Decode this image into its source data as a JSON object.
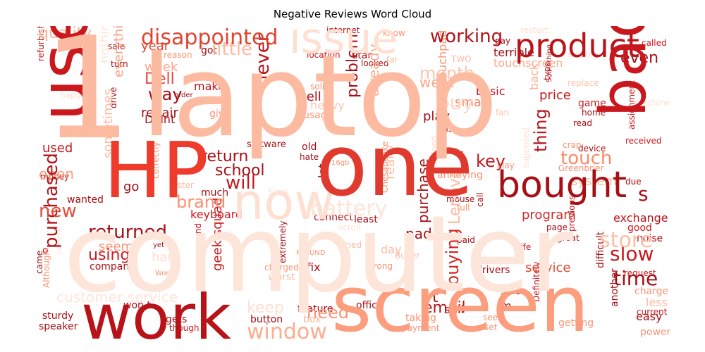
{
  "title": "Negative Reviews Word Cloud",
  "chart_data": {
    "type": "wordcloud",
    "title": "Negative Reviews Word Cloud",
    "colormap": "Reds",
    "background": "#ffffff",
    "words": [
      {
        "text": "laptop",
        "color": "#fcbba1"
      },
      {
        "text": "computer",
        "color": "#fee5d9"
      },
      {
        "text": "one",
        "color": "#e03a2f"
      },
      {
        "text": "screen",
        "color": "#fc9e7e"
      },
      {
        "text": "HP",
        "color": "#ef3b2c"
      },
      {
        "text": "use",
        "color": "#cb181d"
      },
      {
        "text": "bad",
        "color": "#c8171d"
      },
      {
        "text": "work",
        "color": "#b71319"
      },
      {
        "text": "1",
        "color": "#fcbba1"
      },
      {
        "text": "bought",
        "color": "#a50f15"
      },
      {
        "text": "now",
        "color": "#fee0d2"
      },
      {
        "text": "issue",
        "color": "#fee0d2"
      },
      {
        "text": "product",
        "color": "#b91419"
      },
      {
        "text": "disappointed",
        "color": "#e0442f"
      },
      {
        "text": "working",
        "color": "#b21218"
      },
      {
        "text": "window",
        "color": "#fcac91"
      },
      {
        "text": "time",
        "color": "#a50f15"
      },
      {
        "text": "slow",
        "color": "#c8171c"
      },
      {
        "text": "store",
        "color": "#fcbfa5"
      },
      {
        "text": "return",
        "color": "#a81016"
      },
      {
        "text": "purchased",
        "color": "#b31217"
      },
      {
        "text": "returned",
        "color": "#a50f15"
      },
      {
        "text": "will",
        "color": "#c31a1f"
      },
      {
        "text": "school",
        "color": "#a50f15"
      },
      {
        "text": "key",
        "color": "#c31a1f"
      },
      {
        "text": "touch",
        "color": "#fc8a6a"
      },
      {
        "text": "thing",
        "color": "#b71319"
      },
      {
        "text": "buying",
        "color": "#ce2825"
      },
      {
        "text": "brand",
        "color": "#fc8f71"
      },
      {
        "text": "battery",
        "color": "#fee5d9"
      },
      {
        "text": "new",
        "color": "#e34b36"
      },
      {
        "text": "quality",
        "color": "#fcb59a"
      },
      {
        "text": "little",
        "color": "#fcbba1"
      },
      {
        "text": "month",
        "color": "#fdc5ad"
      },
      {
        "text": "even",
        "color": "#a50f15"
      },
      {
        "text": "Dell",
        "color": "#e8473a"
      },
      {
        "text": "week",
        "color": "#fca486"
      },
      {
        "text": "way",
        "color": "#a50f15"
      },
      {
        "text": "year",
        "color": "#e0442f"
      },
      {
        "text": "never",
        "color": "#b81419"
      },
      {
        "text": "went",
        "color": "#fca486"
      },
      {
        "text": "buy",
        "color": "#fdd7c6"
      },
      {
        "text": "problem",
        "color": "#a50f15"
      },
      {
        "text": "already",
        "color": "#fcab8f"
      },
      {
        "text": "keep",
        "color": "#fee0d2"
      },
      {
        "text": "need",
        "color": "#fc9373"
      },
      {
        "text": "email",
        "color": "#b71319"
      },
      {
        "text": "using",
        "color": "#cb181d"
      },
      {
        "text": "service",
        "color": "#e0442f"
      },
      {
        "text": "customer service",
        "color": "#fee5d9"
      },
      {
        "text": "geek squad",
        "color": "#cb181d"
      },
      {
        "text": "keyboard",
        "color": "#cb181d"
      },
      {
        "text": "program",
        "color": "#cf2a27"
      },
      {
        "text": "purchase",
        "color": "#a50f15"
      },
      {
        "text": "exchange",
        "color": "#b61419"
      },
      {
        "text": "used",
        "color": "#cb181d"
      },
      {
        "text": "open",
        "color": "#fc9979"
      },
      {
        "text": "repair",
        "color": "#a50f15"
      },
      {
        "text": "play",
        "color": "#a50f15"
      },
      {
        "text": "small",
        "color": "#fc8565"
      },
      {
        "text": "price",
        "color": "#cb181d"
      },
      {
        "text": "basic",
        "color": "#c31a1f"
      },
      {
        "text": "back",
        "color": "#fcae92"
      },
      {
        "text": "well",
        "color": "#a81016"
      },
      {
        "text": "lot",
        "color": "#a50f15"
      },
      {
        "text": "pad",
        "color": "#a50f15"
      },
      {
        "text": "still",
        "color": "#a50f15"
      },
      {
        "text": "fix",
        "color": "#b21218"
      },
      {
        "text": "seem",
        "color": "#fc9373"
      },
      {
        "text": "hard",
        "color": "#fee0d2"
      },
      {
        "text": "go",
        "color": "#a50f15"
      },
      {
        "text": "much",
        "color": "#a50f15"
      },
      {
        "text": "sometimes",
        "color": "#fcbba1"
      },
      {
        "text": "everything",
        "color": "#fc9e80"
      },
      {
        "text": "nothing",
        "color": "#fee5d9"
      },
      {
        "text": "make",
        "color": "#b91419"
      },
      {
        "text": "got",
        "color": "#a50f15"
      },
      {
        "text": "give",
        "color": "#fc9272"
      },
      {
        "text": "Didnt",
        "color": "#a50f15"
      },
      {
        "text": "software",
        "color": "#a50f15"
      },
      {
        "text": "old",
        "color": "#a50f15"
      },
      {
        "text": "hate",
        "color": "#a50f15"
      },
      {
        "text": "Sims",
        "color": "#fee0d2"
      },
      {
        "text": "heavy",
        "color": "#fdc5ad"
      },
      {
        "text": "usage",
        "color": "#fc9272"
      },
      {
        "text": "solid",
        "color": "#fc9272"
      },
      {
        "text": "touchpad",
        "color": "#fc9272"
      },
      {
        "text": "touchscreen",
        "color": "#fcad90"
      },
      {
        "text": "terrible",
        "color": "#a50f15"
      },
      {
        "text": "location",
        "color": "#cb181d"
      },
      {
        "text": "star",
        "color": "#b11218"
      },
      {
        "text": "internet",
        "color": "#b71319"
      },
      {
        "text": "know",
        "color": "#fc9272"
      },
      {
        "text": "looked",
        "color": "#a50f15"
      },
      {
        "text": "far",
        "color": "#fcbba1"
      },
      {
        "text": "pay",
        "color": "#a50f15"
      },
      {
        "text": "restart",
        "color": "#fee0d2"
      },
      {
        "text": "called",
        "color": "#cb181d"
      },
      {
        "text": "waiting",
        "color": "#fee0d2"
      },
      {
        "text": "sale",
        "color": "#a50f15"
      },
      {
        "text": "reason",
        "color": "#fc9272"
      },
      {
        "text": "turn",
        "color": "#a50f15"
      },
      {
        "text": "refurbished",
        "color": "#cb181d"
      },
      {
        "text": "happy",
        "color": "#fee0d2"
      },
      {
        "text": "mouse instead",
        "color": "#fc9272"
      },
      {
        "text": "order",
        "color": "#a50f15"
      },
      {
        "text": "drive",
        "color": "#a50f15"
      },
      {
        "text": "last",
        "color": "#a50f15"
      },
      {
        "text": "fan",
        "color": "#fdc5ad"
      },
      {
        "text": "game",
        "color": "#cb181d"
      },
      {
        "text": "home",
        "color": "#a50f15"
      },
      {
        "text": "read",
        "color": "#a50f15"
      },
      {
        "text": "replace",
        "color": "#fdc5ad"
      },
      {
        "text": "Something",
        "color": "#a50f15"
      },
      {
        "text": "type",
        "color": "#cb181d"
      },
      {
        "text": "machine",
        "color": "#fee0d2"
      },
      {
        "text": "assignment",
        "color": "#cb181d"
      },
      {
        "text": "received",
        "color": "#cb181d"
      },
      {
        "text": "device",
        "color": "#a50f15"
      },
      {
        "text": "crap",
        "color": "#fc9272"
      },
      {
        "text": "May",
        "color": "#fc9272"
      },
      {
        "text": "supposed",
        "color": "#fee0d2"
      },
      {
        "text": "helped",
        "color": "#fee0d2"
      },
      {
        "text": "Greenbrier",
        "color": "#fc9272"
      },
      {
        "text": "due",
        "color": "#a50f15"
      },
      {
        "text": "s",
        "color": "#a50f15"
      },
      {
        "text": "good",
        "color": "#cb181d"
      },
      {
        "text": "noise",
        "color": "#a50f15"
      },
      {
        "text": "great",
        "color": "#a50f15"
      },
      {
        "text": "page",
        "color": "#a50f15"
      },
      {
        "text": "previous",
        "color": "#cb181d"
      },
      {
        "text": "life",
        "color": "#cb181d"
      },
      {
        "text": "paid",
        "color": "#a50f15"
      },
      {
        "text": "request",
        "color": "#cb181d"
      },
      {
        "text": "difficult",
        "color": "#a50f15"
      },
      {
        "text": "charge",
        "color": "#fc9272"
      },
      {
        "text": "less",
        "color": "#fcbba1"
      },
      {
        "text": "current",
        "color": "#cb181d"
      },
      {
        "text": "easy",
        "color": "#a50f15"
      },
      {
        "text": "another",
        "color": "#a50f15"
      },
      {
        "text": "power",
        "color": "#fc9272"
      },
      {
        "text": "getting",
        "color": "#fc9272"
      },
      {
        "text": "Definitely",
        "color": "#cb181d"
      },
      {
        "text": "side",
        "color": "#a50f15"
      },
      {
        "text": "drivers",
        "color": "#a50f15"
      },
      {
        "text": "m",
        "color": "#a50f15"
      },
      {
        "text": "office",
        "color": "#a50f15"
      },
      {
        "text": "taking",
        "color": "#fc9272"
      },
      {
        "text": "payment",
        "color": "#fc9272"
      },
      {
        "text": "reset",
        "color": "#fc9272"
      },
      {
        "text": "see",
        "color": "#fc9272"
      },
      {
        "text": "feature",
        "color": "#a50f15"
      },
      {
        "text": "box",
        "color": "#fcbba1"
      },
      {
        "text": "wrong",
        "color": "#fc9272"
      },
      {
        "text": "tried",
        "color": "#fcbba1"
      },
      {
        "text": "REFUND",
        "color": "#fc9272"
      },
      {
        "text": "extremely",
        "color": "#a50f15"
      },
      {
        "text": "worst",
        "color": "#fcbba1"
      },
      {
        "text": "charged",
        "color": "#fc9272"
      },
      {
        "text": "button",
        "color": "#a50f15"
      },
      {
        "text": "gets",
        "color": "#a50f15"
      },
      {
        "text": "though",
        "color": "#cb181d"
      },
      {
        "text": "recommend",
        "color": "#cb181d"
      },
      {
        "text": "won t",
        "color": "#a50f15"
      },
      {
        "text": "Word",
        "color": "#fc9272"
      },
      {
        "text": "yet",
        "color": "#a50f15"
      },
      {
        "text": "company",
        "color": "#a50f15"
      },
      {
        "text": "came",
        "color": "#a50f15"
      },
      {
        "text": "Although",
        "color": "#fc9272"
      },
      {
        "text": "sturdy",
        "color": "#a50f15"
      },
      {
        "text": "speaker",
        "color": "#a50f15"
      },
      {
        "text": "camera",
        "color": "#fee0d2"
      },
      {
        "text": "o",
        "color": "#cb181d"
      },
      {
        "text": "connect",
        "color": "#a50f15"
      },
      {
        "text": "least",
        "color": "#a50f15"
      },
      {
        "text": "really",
        "color": "#fcbba1"
      },
      {
        "text": "mouse",
        "color": "#a50f15"
      },
      {
        "text": "call",
        "color": "#a50f15"
      },
      {
        "text": "full",
        "color": "#fc9272"
      },
      {
        "text": "annoying",
        "color": "#fc9272"
      },
      {
        "text": "Chesapeake",
        "color": "#fc9272"
      },
      {
        "text": "16gb",
        "color": "#fc9272"
      },
      {
        "text": "faster",
        "color": "#fcbba1"
      },
      {
        "text": "correctly",
        "color": "#fc9272"
      },
      {
        "text": "money",
        "color": "#a50f15"
      },
      {
        "text": "wanted",
        "color": "#a50f15"
      },
      {
        "text": "Lenovo",
        "color": "#fcbba1"
      },
      {
        "text": "TWO",
        "color": "#fcbba1"
      },
      {
        "text": "c",
        "color": "#a50f15"
      },
      {
        "text": "t",
        "color": "#a50f15"
      },
      {
        "text": "system",
        "color": "#fcbba1"
      },
      {
        "text": "day",
        "color": "#fcbba1"
      },
      {
        "text": "Buyer",
        "color": "#fcbba1"
      },
      {
        "text": "scroll",
        "color": "#fee0d2"
      }
    ]
  }
}
